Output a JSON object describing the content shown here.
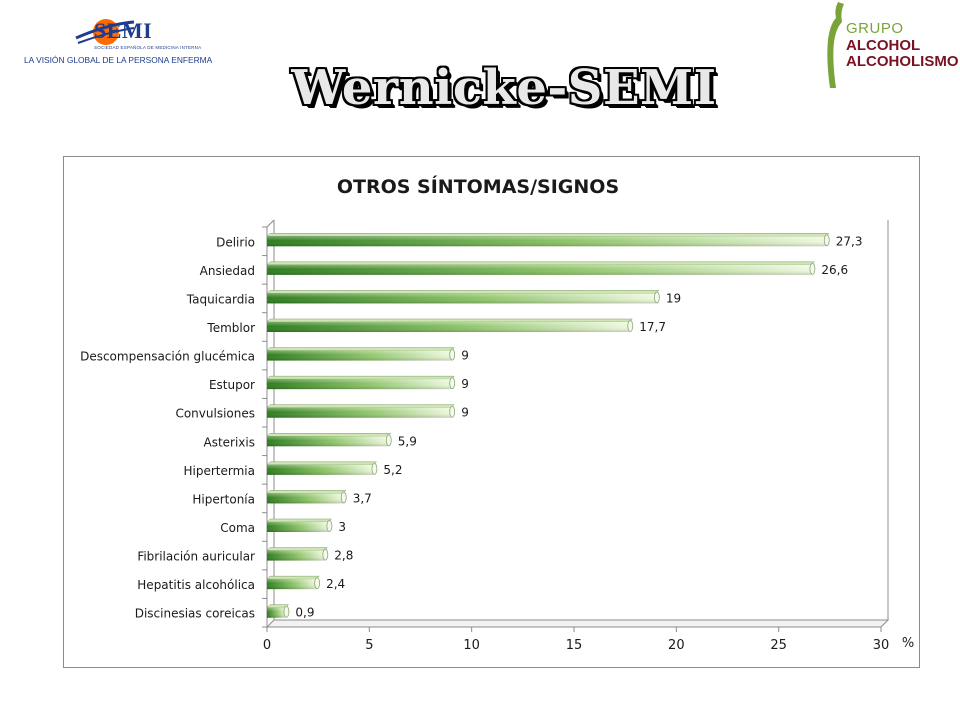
{
  "header": {
    "title": "Wernicke-SEMI",
    "logo_left": {
      "name": "SEMI",
      "subtitle": "SOCIEDAD ESPAÑOLA DE MEDICINA INTERNA",
      "tagline": "LA VISIÓN GLOBAL DE LA PERSONA ENFERMA"
    },
    "logo_right": {
      "line1": "GRUPO",
      "line2": "ALCOHOL",
      "line3": "ALCOHOLISMO"
    }
  },
  "colors": {
    "bar_dark": "#2e7d1e",
    "bar_light": "#e9f5d6",
    "axis": "#8c8c8c",
    "semi_blue": "#1f3d8c",
    "semi_orange": "#ff6a00",
    "grupo_green": "#7aa33a",
    "grupo_red": "#7a1224"
  },
  "chart_data": {
    "type": "bar",
    "orientation": "horizontal",
    "title": "OTROS SÍNTOMAS/SIGNOS",
    "xlabel": "%",
    "ylabel": "",
    "xlim": [
      0,
      30
    ],
    "xticks": [
      0,
      5,
      10,
      15,
      20,
      25,
      30
    ],
    "grid": false,
    "legend": "none",
    "categories": [
      "Delirio",
      "Ansiedad",
      "Taquicardia",
      "Temblor",
      "Descompensación glucémica",
      "Estupor",
      "Convulsiones",
      "Asterixis",
      "Hipertermia",
      "Hipertonía",
      "Coma",
      "Fibrilación auricular",
      "Hepatitis alcohólica",
      "Discinesias coreicas"
    ],
    "values": [
      27.3,
      26.6,
      19,
      17.7,
      9,
      9,
      9,
      5.9,
      5.2,
      3.7,
      3,
      2.8,
      2.4,
      0.9
    ],
    "value_labels": [
      "27,3",
      "26,6",
      "19",
      "17,7",
      "9",
      "9",
      "9",
      "5,9",
      "5,2",
      "3,7",
      "3",
      "2,8",
      "2,4",
      "0,9"
    ]
  }
}
